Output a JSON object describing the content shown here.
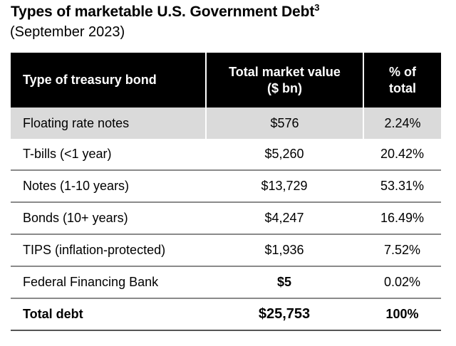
{
  "title": {
    "text": "Types of marketable U.S. Government Debt",
    "footnote": "3",
    "subtitle": "(September 2023)"
  },
  "table": {
    "headers": {
      "type": "Type of treasury bond",
      "value_line1": "Total market value",
      "value_line2": "($ bn)",
      "pct_line1": "% of",
      "pct_line2": "total"
    },
    "rows": [
      {
        "type": "Floating rate notes",
        "value": "$576",
        "pct": "2.24%"
      },
      {
        "type": "T-bills (<1 year)",
        "value": "$5,260",
        "pct": "20.42%"
      },
      {
        "type": "Notes (1-10 years)",
        "value": "$13,729",
        "pct": "53.31%"
      },
      {
        "type": "Bonds (10+ years)",
        "value": "$4,247",
        "pct": "16.49%"
      },
      {
        "type": "TIPS (inflation-protected)",
        "value": "$1,936",
        "pct": "7.52%"
      },
      {
        "type": "Federal Financing Bank",
        "value": "$5",
        "pct": "0.02%"
      }
    ],
    "total": {
      "type": "Total debt",
      "value": "$25,753",
      "pct": "100%"
    }
  },
  "colors": {
    "header_bg": "#000000",
    "header_text": "#ffffff",
    "highlight_row_bg": "#dadada",
    "row_divider": "#8a8a8a",
    "total_divider": "#555555"
  }
}
